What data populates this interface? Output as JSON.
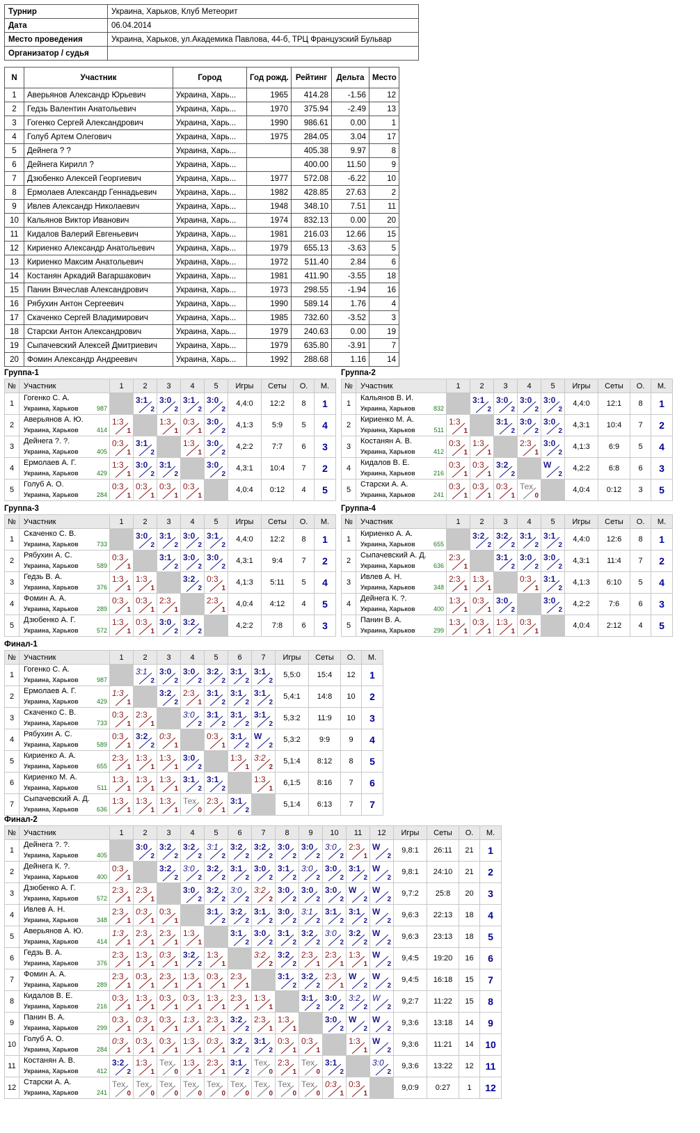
{
  "info": [
    [
      "Турнир",
      "Украина, Харьков, Клуб Метеорит"
    ],
    [
      "Дата",
      "06.04.2014"
    ],
    [
      "Место проведения",
      "Украина, Харьков, ул.Академика Павлова, 44-б, ТРЦ Французский Бульвар"
    ],
    [
      "Организатор / судья",
      ""
    ]
  ],
  "players_header": [
    "N",
    "Участник",
    "Город",
    "Год рожд.",
    "Рейтинг",
    "Дельта",
    "Место"
  ],
  "players": [
    [
      "1",
      "Аверьянов Александр Юрьевич",
      "Украина, Харь...",
      "1965",
      "414.28",
      "-1.56",
      "12"
    ],
    [
      "2",
      "Гедзь Валентин Анатольевич",
      "Украина, Харь...",
      "1970",
      "375.94",
      "-2.49",
      "13"
    ],
    [
      "3",
      "Гогенко Сергей Александрович",
      "Украина, Харь...",
      "1990",
      "986.61",
      "0.00",
      "1"
    ],
    [
      "4",
      "Голуб Артем Олегович",
      "Украина, Харь...",
      "1975",
      "284.05",
      "3.04",
      "17"
    ],
    [
      "5",
      "Дейнега ? ?",
      "Украина, Харь...",
      "",
      "405.38",
      "9.97",
      "8"
    ],
    [
      "6",
      "Дейнега Кирилл ?",
      "Украина, Харь...",
      "",
      "400.00",
      "11.50",
      "9"
    ],
    [
      "7",
      "Дзюбенко Алексей Георгиевич",
      "Украина, Харь...",
      "1977",
      "572.08",
      "-6.22",
      "10"
    ],
    [
      "8",
      "Ермолаев Александр Геннадьевич",
      "Украина, Харь...",
      "1982",
      "428.85",
      "27.63",
      "2"
    ],
    [
      "9",
      "Ивлев Александр Николаевич",
      "Украина, Харь...",
      "1948",
      "348.10",
      "7.51",
      "11"
    ],
    [
      "10",
      "Кальянов Виктор Иванович",
      "Украина, Харь...",
      "1974",
      "832.13",
      "0.00",
      "20"
    ],
    [
      "11",
      "Кидалов Валерий Евгеньевич",
      "Украина, Харь...",
      "1981",
      "216.03",
      "12.66",
      "15"
    ],
    [
      "12",
      "Кириенко Александр Анатольевич",
      "Украина, Харь...",
      "1979",
      "655.13",
      "-3.63",
      "5"
    ],
    [
      "13",
      "Кириенко Максим Анатольевич",
      "Украина, Харь...",
      "1972",
      "511.40",
      "2.84",
      "6"
    ],
    [
      "14",
      "Костанян Аркадий Вагаршакович",
      "Украина, Харь...",
      "1981",
      "411.90",
      "-3.55",
      "18"
    ],
    [
      "15",
      "Панин Вячеслав Александрович",
      "Украина, Харь...",
      "1973",
      "298.55",
      "-1.94",
      "16"
    ],
    [
      "16",
      "Рябухин Антон Сергеевич",
      "Украина, Харь...",
      "1990",
      "589.14",
      "1.76",
      "4"
    ],
    [
      "17",
      "Скаченко Сергей Владимирович",
      "Украина, Харь...",
      "1985",
      "732.60",
      "-3.52",
      "3"
    ],
    [
      "18",
      "Старски Антон Александрович",
      "Украина, Харь...",
      "1979",
      "240.63",
      "0.00",
      "19"
    ],
    [
      "19",
      "Сыпачевский Алексей Дмитриевич",
      "Украина, Харь...",
      "1979",
      "635.80",
      "-3.91",
      "7"
    ],
    [
      "20",
      "Фомин Александр Андреевич",
      "Украина, Харь...",
      "1992",
      "288.68",
      "1.16",
      "14"
    ]
  ],
  "group_labels": {
    "num": "№",
    "player": "Участник",
    "games": "Игры",
    "sets": "Сеты",
    "points": "О.",
    "place": "М.",
    "city": "Украина, Харьков"
  },
  "groups": [
    {
      "title": "Группа-1",
      "players": [
        {
          "n": "1",
          "name": "Гогенко С. А.",
          "rating": "987",
          "games": "4,4:0",
          "sets": "12:2",
          "points": "8",
          "place": "1",
          "cells": [
            "X",
            "W3:1:2",
            "W3:0:2",
            "W3:1:2",
            "W3:0:2"
          ]
        },
        {
          "n": "2",
          "name": "Аверьянов А. Ю.",
          "rating": "414",
          "games": "4,1:3",
          "sets": "5:9",
          "points": "5",
          "place": "4",
          "cells": [
            "L1:3:1",
            "X",
            "L1:3:1",
            "L0:3:1",
            "W3:0:2"
          ]
        },
        {
          "n": "3",
          "name": "Дейнега ?. ?.",
          "rating": "405",
          "games": "4,2:2",
          "sets": "7:7",
          "points": "6",
          "place": "3",
          "cells": [
            "L0:3:1",
            "W3:1:2",
            "X",
            "L1:3:1",
            "W3:0:2"
          ]
        },
        {
          "n": "4",
          "name": "Ермолаев А. Г.",
          "rating": "429",
          "games": "4,3:1",
          "sets": "10:4",
          "points": "7",
          "place": "2",
          "cells": [
            "L1:3:1",
            "W3:0:2",
            "W3:1:2",
            "X",
            "W3:0:2"
          ]
        },
        {
          "n": "5",
          "name": "Голуб А. О.",
          "rating": "284",
          "games": "4,0:4",
          "sets": "0:12",
          "points": "4",
          "place": "5",
          "cells": [
            "L0:3:1",
            "L0:3:1",
            "L0:3:1",
            "L0:3:1",
            "X"
          ]
        }
      ]
    },
    {
      "title": "Группа-2",
      "players": [
        {
          "n": "1",
          "name": "Кальянов В. И.",
          "rating": "832",
          "games": "4,4:0",
          "sets": "12:1",
          "points": "8",
          "place": "1",
          "cells": [
            "X",
            "W3:1:2",
            "W3:0:2",
            "W3:0:2",
            "W3:0:2"
          ]
        },
        {
          "n": "2",
          "name": "Кириенко М. А.",
          "rating": "511",
          "games": "4,3:1",
          "sets": "10:4",
          "points": "7",
          "place": "2",
          "cells": [
            "L1:3:1",
            "X",
            "W3:1:2",
            "W3:0:2",
            "W3:0:2"
          ]
        },
        {
          "n": "3",
          "name": "Костанян А. В.",
          "rating": "412",
          "games": "4,1:3",
          "sets": "6:9",
          "points": "5",
          "place": "4",
          "cells": [
            "L0:3:1",
            "L1:3:1",
            "X",
            "L2:3:1",
            "W3:0:2"
          ]
        },
        {
          "n": "4",
          "name": "Кидалов В. Е.",
          "rating": "216",
          "games": "4,2:2",
          "sets": "6:8",
          "points": "6",
          "place": "3",
          "cells": [
            "L0:3:1",
            "L0:3:1",
            "W3:2:2",
            "X",
            "WW:2"
          ]
        },
        {
          "n": "5",
          "name": "Старски А. А.",
          "rating": "241",
          "games": "4,0:4",
          "sets": "0:12",
          "points": "3",
          "place": "5",
          "cells": [
            "L0:3:1",
            "L0:3:1",
            "L0:3:1",
            "TТех:0",
            "X"
          ]
        }
      ]
    },
    {
      "title": "Группа-3",
      "players": [
        {
          "n": "1",
          "name": "Скаченко С. В.",
          "rating": "733",
          "games": "4,4:0",
          "sets": "12:2",
          "points": "8",
          "place": "1",
          "cells": [
            "X",
            "W3:0:2",
            "W3:1:2",
            "W3:0:2",
            "W3:1:2"
          ]
        },
        {
          "n": "2",
          "name": "Рябухин А. С.",
          "rating": "589",
          "games": "4,3:1",
          "sets": "9:4",
          "points": "7",
          "place": "2",
          "cells": [
            "L0:3:1",
            "X",
            "W3:1:2",
            "W3:0:2",
            "W3:0:2"
          ]
        },
        {
          "n": "3",
          "name": "Гедзь В. А.",
          "rating": "376",
          "games": "4,1:3",
          "sets": "5:11",
          "points": "5",
          "place": "4",
          "cells": [
            "L1:3:1",
            "L1:3:1",
            "X",
            "W3:2:2",
            "L0:3:1"
          ]
        },
        {
          "n": "4",
          "name": "Фомин А. А.",
          "rating": "289",
          "games": "4,0:4",
          "sets": "4:12",
          "points": "4",
          "place": "5",
          "cells": [
            "L0:3:1",
            "L0:3:1",
            "L2:3:1",
            "X",
            "L2:3:1"
          ]
        },
        {
          "n": "5",
          "name": "Дзюбенко А. Г.",
          "rating": "572",
          "games": "4,2:2",
          "sets": "7:8",
          "points": "6",
          "place": "3",
          "cells": [
            "L1:3:1",
            "L0:3:1",
            "W3:0:2",
            "W3:2:2",
            "X"
          ]
        }
      ]
    },
    {
      "title": "Группа-4",
      "players": [
        {
          "n": "1",
          "name": "Кириенко А. А.",
          "rating": "655",
          "games": "4,4:0",
          "sets": "12:6",
          "points": "8",
          "place": "1",
          "cells": [
            "X",
            "W3:2:2",
            "W3:2:2",
            "W3:1:2",
            "W3:1:2"
          ]
        },
        {
          "n": "2",
          "name": "Сыпачевский А. Д.",
          "rating": "636",
          "games": "4,3:1",
          "sets": "11:4",
          "points": "7",
          "place": "2",
          "cells": [
            "L2:3:1",
            "X",
            "W3:1:2",
            "W3:0:2",
            "W3:0:2"
          ]
        },
        {
          "n": "3",
          "name": "Ивлев А. Н.",
          "rating": "348",
          "games": "4,1:3",
          "sets": "6:10",
          "points": "5",
          "place": "4",
          "cells": [
            "L2:3:1",
            "L1:3:1",
            "X",
            "L0:3:1",
            "W3:1:2"
          ]
        },
        {
          "n": "4",
          "name": "Дейнега К. ?.",
          "rating": "400",
          "games": "4,2:2",
          "sets": "7:6",
          "points": "6",
          "place": "3",
          "cells": [
            "L1:3:1",
            "L0:3:1",
            "W3:0:2",
            "X",
            "W3:0:2"
          ]
        },
        {
          "n": "5",
          "name": "Панин В. А.",
          "rating": "299",
          "games": "4,0:4",
          "sets": "2:12",
          "points": "4",
          "place": "5",
          "cells": [
            "L1:3:1",
            "L0:3:1",
            "L1:3:1",
            "L0:3:1",
            "X"
          ]
        }
      ]
    },
    {
      "title": "Финал-1",
      "players": [
        {
          "n": "1",
          "name": "Гогенко С. А.",
          "rating": "987",
          "games": "5,5:0",
          "sets": "15:4",
          "points": "12",
          "place": "1",
          "cells": [
            "X",
            "I3:1:2",
            "W3:0:2",
            "W3:0:2",
            "W3:2:2",
            "W3:1:2",
            "W3:1:2"
          ]
        },
        {
          "n": "2",
          "name": "Ермолаев А. Г.",
          "rating": "429",
          "games": "5,4:1",
          "sets": "14:8",
          "points": "10",
          "place": "2",
          "cells": [
            "J1:3:1",
            "X",
            "W3:2:2",
            "L2:3:1",
            "W3:1:2",
            "W3:1:2",
            "W3:1:2"
          ]
        },
        {
          "n": "3",
          "name": "Скаченко С. В.",
          "rating": "733",
          "games": "5,3:2",
          "sets": "11:9",
          "points": "10",
          "place": "3",
          "cells": [
            "L0:3:1",
            "L2:3:1",
            "X",
            "I3:0:2",
            "W3:1:2",
            "W3:1:2",
            "W3:1:2"
          ]
        },
        {
          "n": "4",
          "name": "Рябухин А. С.",
          "rating": "589",
          "games": "5,3:2",
          "sets": "9:9",
          "points": "9",
          "place": "4",
          "cells": [
            "L0:3:1",
            "W3:2:2",
            "J0:3:1",
            "X",
            "L0:3:1",
            "W3:1:2",
            "WW:2"
          ]
        },
        {
          "n": "5",
          "name": "Кириенко А. А.",
          "rating": "655",
          "games": "5,1:4",
          "sets": "8:12",
          "points": "8",
          "place": "5",
          "cells": [
            "L2:3:1",
            "L1:3:1",
            "L1:3:1",
            "W3:0:2",
            "X",
            "L1:3:1",
            "J3:2:2"
          ]
        },
        {
          "n": "6",
          "name": "Кириенко М. А.",
          "rating": "511",
          "games": "6,1:5",
          "sets": "8:16",
          "points": "7",
          "place": "6",
          "cells": [
            "L1:3:1",
            "L1:3:1",
            "L1:3:1",
            "W3:1:2",
            "W3:1:2",
            "X",
            "L1:3:1"
          ]
        },
        {
          "n": "7",
          "name": "Сыпачевский А. Д.",
          "rating": "636",
          "games": "5,1:4",
          "sets": "6:13",
          "points": "7",
          "place": "7",
          "cells": [
            "L1:3:1",
            "L1:3:1",
            "L1:3:1",
            "TТех:0",
            "L2:3:1",
            "W3:1:2",
            "X"
          ]
        }
      ]
    },
    {
      "title": "Финал-2",
      "players": [
        {
          "n": "1",
          "name": "Дейнега ?. ?.",
          "rating": "405",
          "games": "9,8:1",
          "sets": "26:11",
          "points": "21",
          "place": "1",
          "cells": [
            "X",
            "W3:0:2",
            "W3:2:2",
            "W3:2:2",
            "I3:1:2",
            "W3:2:2",
            "W3:2:2",
            "W3:0:2",
            "W3:0:2",
            "I3:0:2",
            "L2:3:1",
            "WW:2"
          ]
        },
        {
          "n": "2",
          "name": "Дейнега К. ?.",
          "rating": "400",
          "games": "9,8:1",
          "sets": "24:10",
          "points": "21",
          "place": "2",
          "cells": [
            "L0:3:1",
            "X",
            "W3:2:2",
            "I3:0:2",
            "W3:2:2",
            "W3:1:2",
            "W3:0:2",
            "W3:1:2",
            "I3:0:2",
            "W3:0:2",
            "W3:1:2",
            "WW:2"
          ]
        },
        {
          "n": "3",
          "name": "Дзюбенко А. Г.",
          "rating": "572",
          "games": "9,7:2",
          "sets": "25:8",
          "points": "20",
          "place": "3",
          "cells": [
            "L2:3:1",
            "L2:3:1",
            "X",
            "W3:0:2",
            "W3:2:2",
            "I3:0:2",
            "J3:2:2",
            "W3:0:2",
            "W3:0:2",
            "W3:0:2",
            "WW:2",
            "WW:2"
          ]
        },
        {
          "n": "4",
          "name": "Ивлев А. Н.",
          "rating": "348",
          "games": "9,6:3",
          "sets": "22:13",
          "points": "18",
          "place": "4",
          "cells": [
            "L2:3:1",
            "J0:3:1",
            "L0:3:1",
            "X",
            "W3:1:2",
            "W3:2:2",
            "W3:1:2",
            "W3:0:2",
            "I3:1:2",
            "W3:1:2",
            "W3:1:2",
            "WW:2"
          ]
        },
        {
          "n": "5",
          "name": "Аверьянов А. Ю.",
          "rating": "414",
          "games": "9,6:3",
          "sets": "23:13",
          "points": "18",
          "place": "5",
          "cells": [
            "J1:3:1",
            "L2:3:1",
            "L2:3:1",
            "L1:3:1",
            "X",
            "W3:1:2",
            "W3:0:2",
            "W3:1:2",
            "W3:2:2",
            "I3:0:2",
            "W3:2:2",
            "WW:2"
          ]
        },
        {
          "n": "6",
          "name": "Гедзь В. А.",
          "rating": "376",
          "games": "9,4:5",
          "sets": "19:20",
          "points": "16",
          "place": "6",
          "cells": [
            "L2:3:1",
            "L1:3:1",
            "J0:3:1",
            "W3:2:2",
            "L1:3:1",
            "X",
            "J3:2:2",
            "W3:2:2",
            "L2:3:1",
            "L2:3:1",
            "L1:3:1",
            "WW:2"
          ]
        },
        {
          "n": "7",
          "name": "Фомин А. А.",
          "rating": "289",
          "games": "9,4:5",
          "sets": "16:18",
          "points": "15",
          "place": "7",
          "cells": [
            "L2:3:1",
            "L0:3:1",
            "L2:3:1",
            "L1:3:1",
            "L0:3:1",
            "L2:3:1",
            "X",
            "W3:1:2",
            "W3:2:2",
            "L2:3:1",
            "WW:2",
            "WW:2"
          ]
        },
        {
          "n": "8",
          "name": "Кидалов В. Е.",
          "rating": "216",
          "games": "9,2:7",
          "sets": "11:22",
          "points": "15",
          "place": "8",
          "cells": [
            "L0:3:1",
            "L1:3:1",
            "L0:3:1",
            "L0:3:1",
            "L1:3:1",
            "L2:3:1",
            "L1:3:1",
            "X",
            "W3:1:2",
            "W3:0:2",
            "I3:2:2",
            "IW:2"
          ]
        },
        {
          "n": "9",
          "name": "Панин В. А.",
          "rating": "299",
          "games": "9,3:6",
          "sets": "13:18",
          "points": "14",
          "place": "9",
          "cells": [
            "L0:3:1",
            "J0:3:1",
            "L0:3:1",
            "J1:3:1",
            "L2:3:1",
            "W3:2:2",
            "L2:3:1",
            "L1:3:1",
            "X",
            "W3:0:2",
            "WW:2",
            "WW:2"
          ]
        },
        {
          "n": "10",
          "name": "Голуб А. О.",
          "rating": "284",
          "games": "9,3:6",
          "sets": "11:21",
          "points": "14",
          "place": "10",
          "cells": [
            "J0:3:1",
            "L0:3:1",
            "L0:3:1",
            "L1:3:1",
            "J0:3:1",
            "W3:2:2",
            "W3:1:2",
            "L0:3:1",
            "L0:3:1",
            "X",
            "L1:3:1",
            "WW:2"
          ]
        },
        {
          "n": "11",
          "name": "Костанян А. В.",
          "rating": "412",
          "games": "9,3:6",
          "sets": "13:22",
          "points": "12",
          "place": "11",
          "cells": [
            "W3:2:2",
            "L1:3:1",
            "TТех:0",
            "L1:3:1",
            "L2:3:1",
            "W3:1:2",
            "TТех:0",
            "L2:3:1",
            "TТех:0",
            "W3:1:2",
            "X",
            "I3:0:2"
          ]
        },
        {
          "n": "12",
          "name": "Старски А. А.",
          "rating": "241",
          "games": "9,0:9",
          "sets": "0:27",
          "points": "1",
          "place": "12",
          "cells": [
            "TТех:0",
            "TТех:0",
            "TТех:0",
            "TТех:0",
            "TТех:0",
            "TТех:0",
            "TТех:0",
            "TТех:0",
            "TТех:0",
            "J0:3:1",
            "L0:3:1",
            "X"
          ]
        }
      ]
    }
  ]
}
